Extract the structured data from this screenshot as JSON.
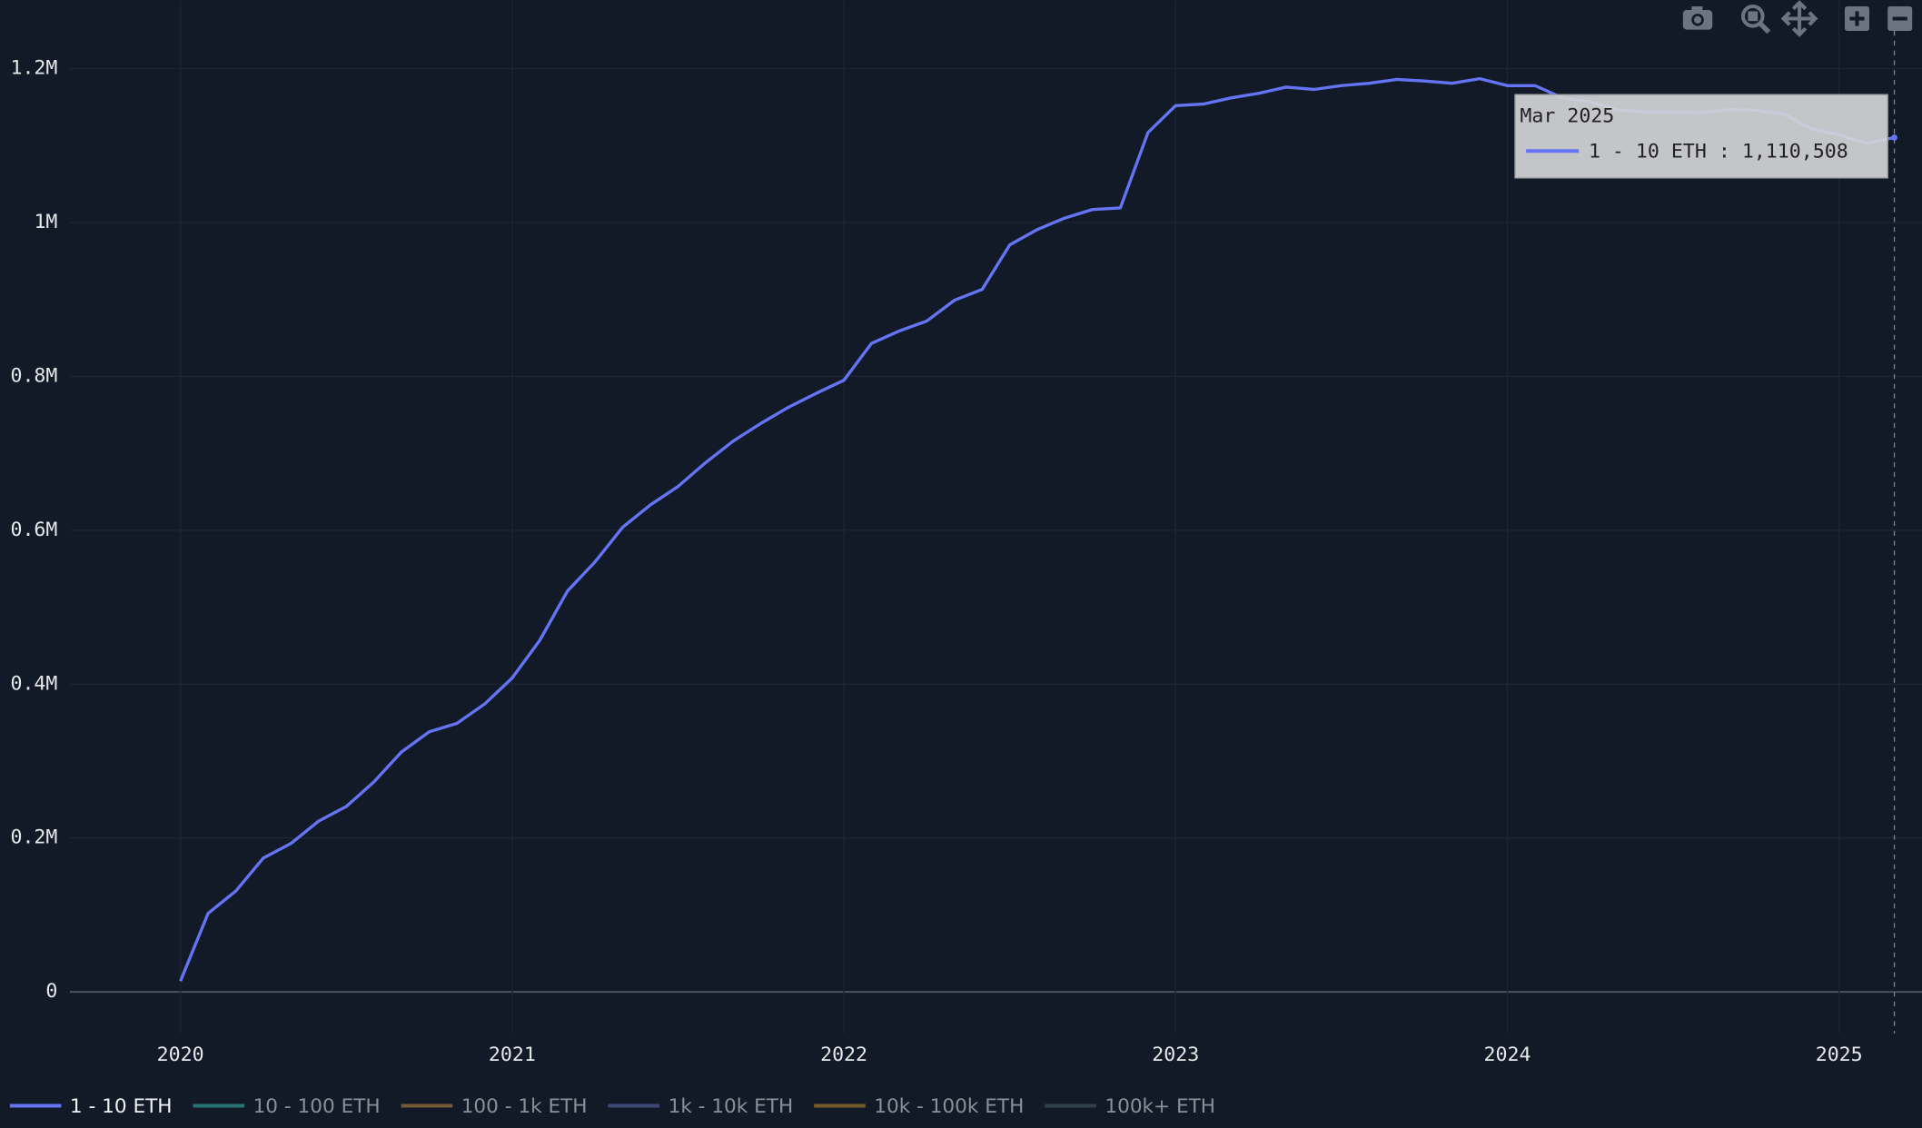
{
  "chart_data": {
    "type": "line",
    "x": [
      "2020-01",
      "2020-02",
      "2020-03",
      "2020-04",
      "2020-05",
      "2020-06",
      "2020-07",
      "2020-08",
      "2020-09",
      "2020-10",
      "2020-11",
      "2020-12",
      "2021-01",
      "2021-02",
      "2021-03",
      "2021-04",
      "2021-05",
      "2021-06",
      "2021-07",
      "2021-08",
      "2021-09",
      "2021-10",
      "2021-11",
      "2021-12",
      "2022-01",
      "2022-02",
      "2022-03",
      "2022-04",
      "2022-05",
      "2022-06",
      "2022-07",
      "2022-08",
      "2022-09",
      "2022-10",
      "2022-11",
      "2022-12",
      "2023-01",
      "2023-02",
      "2023-03",
      "2023-04",
      "2023-05",
      "2023-06",
      "2023-07",
      "2023-08",
      "2023-09",
      "2023-10",
      "2023-11",
      "2023-12",
      "2024-01",
      "2024-02",
      "2024-03",
      "2024-04",
      "2024-05",
      "2024-06",
      "2024-07",
      "2024-08",
      "2024-09",
      "2024-10",
      "2024-11",
      "2024-12",
      "2025-01",
      "2025-02",
      "2025-03"
    ],
    "series": [
      {
        "name": "1 - 10 ETH",
        "color": "#6474f5",
        "visible": true,
        "values": [
          14000,
          102000,
          131000,
          174000,
          193000,
          222000,
          241000,
          273000,
          312000,
          338000,
          349000,
          374000,
          408000,
          457000,
          521000,
          559000,
          604000,
          633000,
          657000,
          688000,
          716000,
          739000,
          760000,
          778000,
          795000,
          843000,
          859000,
          872000,
          899000,
          913000,
          971000,
          991000,
          1006000,
          1017000,
          1019000,
          1117000,
          1152000,
          1154000,
          1162000,
          1168000,
          1176000,
          1173000,
          1178000,
          1181000,
          1186000,
          1184000,
          1181000,
          1187000,
          1178000,
          1178000,
          1162000,
          1157000,
          1146000,
          1144000,
          1144000,
          1143000,
          1147000,
          1146000,
          1141000,
          1122000,
          1114000,
          1103000,
          1110508
        ]
      },
      {
        "name": "10 - 100 ETH",
        "color": "#2a8a86",
        "visible": "legendonly"
      },
      {
        "name": "100 - 1k ETH",
        "color": "#8f6a3c",
        "visible": "legendonly"
      },
      {
        "name": "1k - 10k ETH",
        "color": "#4a5288",
        "visible": "legendonly"
      },
      {
        "name": "10k - 100k ETH",
        "color": "#8f6a2e",
        "visible": "legendonly"
      },
      {
        "name": "100k+ ETH",
        "color": "#3c4a56",
        "visible": "legendonly"
      }
    ],
    "xlim": [
      "2019-09",
      "2025-04"
    ],
    "xticks": [
      {
        "value": "2020-01",
        "label": "2020"
      },
      {
        "value": "2021-01",
        "label": "2021"
      },
      {
        "value": "2022-01",
        "label": "2022"
      },
      {
        "value": "2023-01",
        "label": "2023"
      },
      {
        "value": "2024-01",
        "label": "2024"
      },
      {
        "value": "2025-01",
        "label": "2025"
      }
    ],
    "ylim": [
      -54000,
      1289000
    ],
    "yticks": [
      0,
      {
        "value": 200000,
        "label": "0.2M"
      },
      {
        "value": 400000,
        "label": "0.4M"
      },
      {
        "value": 600000,
        "label": "0.6M"
      },
      {
        "value": 800000,
        "label": "0.8M"
      },
      {
        "value": 1000000,
        "label": "1M"
      },
      {
        "value": 1200000,
        "label": "1.2M"
      }
    ],
    "grid": true,
    "legend": "bottom",
    "tooltip": {
      "header": "Mar 2025",
      "x": "2025-03",
      "value": 1110508,
      "label": "1 - 10 ETH : 1,110,508"
    }
  }
}
